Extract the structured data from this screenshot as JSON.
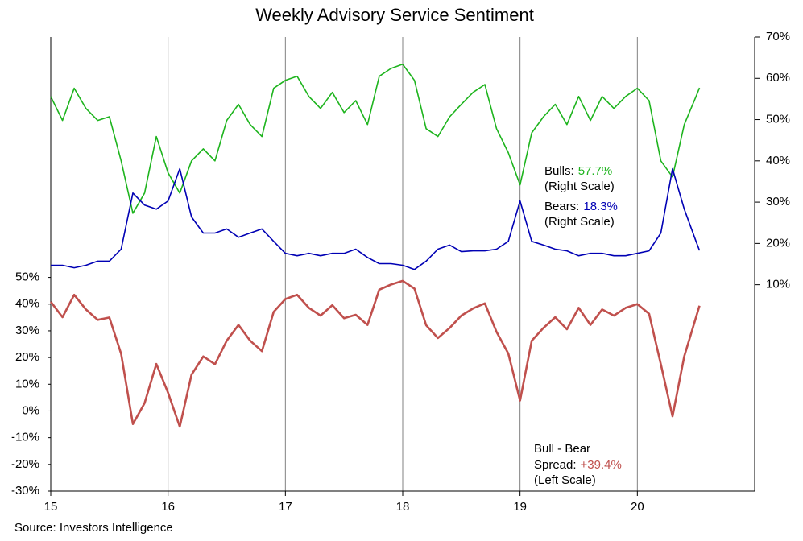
{
  "chart_data": {
    "type": "line",
    "title": "Weekly Advisory Service Sentiment",
    "source": "Source: Investors Intelligence",
    "x": [
      15.0,
      15.1,
      15.2,
      15.3,
      15.4,
      15.5,
      15.6,
      15.7,
      15.8,
      15.9,
      16.0,
      16.1,
      16.2,
      16.3,
      16.4,
      16.5,
      16.6,
      16.7,
      16.8,
      16.9,
      17.0,
      17.1,
      17.2,
      17.3,
      17.4,
      17.5,
      17.6,
      17.7,
      17.8,
      17.9,
      18.0,
      18.1,
      18.2,
      18.3,
      18.4,
      18.5,
      18.6,
      18.7,
      18.8,
      18.9,
      19.0,
      19.1,
      19.2,
      19.3,
      19.4,
      19.5,
      19.6,
      19.7,
      19.8,
      19.9,
      20.0,
      20.1,
      20.2,
      20.3,
      20.4,
      20.5,
      20.53
    ],
    "xlim": [
      15,
      21
    ],
    "xticks": [
      15,
      16,
      17,
      18,
      19,
      20
    ],
    "ylim": [
      -30,
      140
    ],
    "yticks": [
      {
        "value": -30,
        "label": "-30%"
      },
      {
        "value": -20,
        "label": "-20%"
      },
      {
        "value": -10,
        "label": "-10%"
      },
      {
        "value": 0,
        "label": "0%"
      },
      {
        "value": 10,
        "label": "10%"
      },
      {
        "value": 20,
        "label": "20%"
      },
      {
        "value": 30,
        "label": "30%"
      },
      {
        "value": 40,
        "label": "40%"
      },
      {
        "value": 50,
        "label": "50%"
      }
    ],
    "y2lim": [
      -40,
      70
    ],
    "y2ticks": [
      {
        "value": 10,
        "label": "10%"
      },
      {
        "value": 20,
        "label": "20%"
      },
      {
        "value": 30,
        "label": "30%"
      },
      {
        "value": 40,
        "label": "40%"
      },
      {
        "value": 50,
        "label": "50%"
      },
      {
        "value": 60,
        "label": "60%"
      },
      {
        "value": 70,
        "label": "70%"
      }
    ],
    "series": [
      {
        "color": "#1eb41e",
        "axis": "y2",
        "values": [
          55.6,
          49.8,
          57.6,
          52.7,
          49.8,
          50.7,
          40,
          27.3,
          32.2,
          45.9,
          37.1,
          32.2,
          40,
          42.9,
          40,
          49.8,
          53.7,
          48.8,
          45.9,
          57.6,
          59.5,
          60.5,
          55.6,
          52.7,
          56.6,
          51.7,
          54.6,
          48.8,
          60.5,
          62.4,
          63.4,
          59.5,
          47.8,
          45.9,
          50.7,
          53.7,
          56.6,
          58.5,
          47.8,
          42,
          34.2,
          46.8,
          50.7,
          53.7,
          48.8,
          55.6,
          49.8,
          55.6,
          52.7,
          55.6,
          57.6,
          54.6,
          40,
          36.1,
          48.8,
          55.6,
          57.7
        ]
      },
      {
        "color": "#0000b4",
        "axis": "y2",
        "values": [
          14.7,
          14.7,
          14.1,
          14.7,
          15.7,
          15.7,
          18.6,
          32.2,
          29.3,
          28.3,
          30.3,
          38.1,
          26.4,
          22.5,
          22.5,
          23.5,
          21.5,
          22.5,
          23.5,
          20.5,
          17.6,
          17,
          17.6,
          17,
          17.6,
          17.6,
          18.6,
          16.6,
          15.1,
          15.1,
          14.7,
          13.7,
          15.7,
          18.6,
          19.6,
          18,
          18.2,
          18.2,
          18.6,
          20.5,
          30.3,
          20.5,
          19.6,
          18.6,
          18.2,
          17,
          17.6,
          17.6,
          17,
          17,
          17.6,
          18.2,
          22.5,
          38.1,
          28.3,
          20.5,
          18.3
        ]
      },
      {
        "color": "#c0504d",
        "axis": "y",
        "values": [
          40.9,
          35.1,
          43.5,
          38,
          34.1,
          35,
          21.4,
          -4.9,
          2.9,
          17.6,
          6.8,
          -5.9,
          13.6,
          20.4,
          17.5,
          26.3,
          32.2,
          26.3,
          22.4,
          37.1,
          41.9,
          43.5,
          38.6,
          35.7,
          39.6,
          34.7,
          36,
          32.2,
          45.4,
          47.3,
          48.7,
          45.8,
          32.1,
          27.3,
          31.1,
          35.7,
          38.4,
          40.3,
          29.6,
          21.5,
          3.9,
          26.3,
          31.1,
          35.1,
          30.6,
          38.6,
          32.2,
          38,
          35.7,
          38.6,
          40,
          36.4,
          17.5,
          -2,
          20.5,
          35.1,
          39.4
        ]
      }
    ],
    "annotations": [
      {
        "text": "Bulls:",
        "value_text": "57.7%",
        "note": "(Right Scale)"
      },
      {
        "text": "Bears:",
        "value_text": "18.3%",
        "note": "(Right Scale)"
      },
      {
        "heading": "Bull - Bear",
        "text": "Spread:",
        "value_text": "+39.4%",
        "note": "(Left Scale)"
      }
    ],
    "grid": true
  }
}
